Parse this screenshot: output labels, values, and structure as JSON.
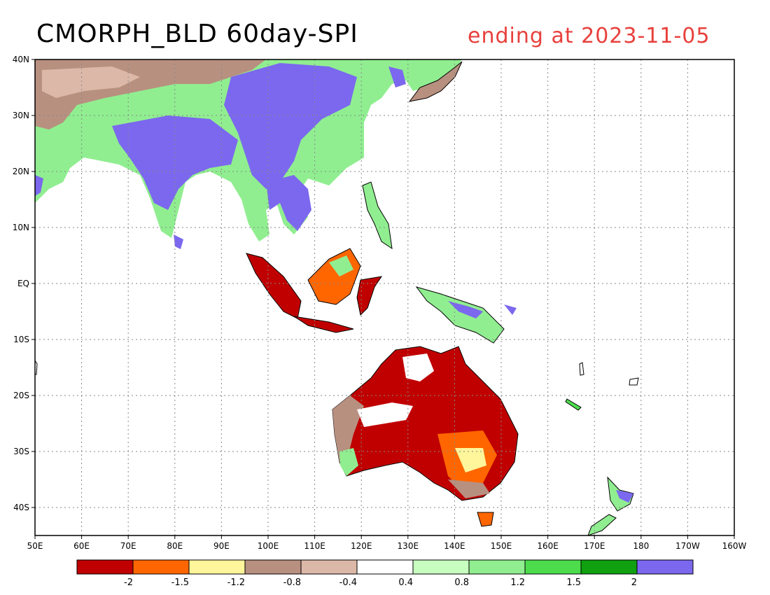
{
  "title": "CMORPH_BLD 60day-SPI",
  "subtitle": "ending at 2023-11-05",
  "map": {
    "lon_range": [
      50,
      200
    ],
    "lat_range": [
      -45,
      40
    ],
    "lon_ticks": [
      "50E",
      "60E",
      "70E",
      "80E",
      "90E",
      "100E",
      "110E",
      "120E",
      "130E",
      "140E",
      "150E",
      "160E",
      "170E",
      "180",
      "170W",
      "160W"
    ],
    "lat_ticks": [
      "40N",
      "30N",
      "20N",
      "10N",
      "EQ",
      "10S",
      "20S",
      "30S",
      "40S"
    ],
    "grid": true
  },
  "legend": {
    "colors": [
      "#c00000",
      "#ff6600",
      "#fff59b",
      "#b89080",
      "#dcb8a8",
      "#ffffff",
      "#c8ffc0",
      "#90ee90",
      "#4cdc4c",
      "#10a010",
      "#7b68ee"
    ],
    "labels": [
      "-2",
      "-1.5",
      "-1.2",
      "-0.8",
      "-0.4",
      "0.4",
      "0.8",
      "1.2",
      "1.5",
      "2"
    ]
  }
}
